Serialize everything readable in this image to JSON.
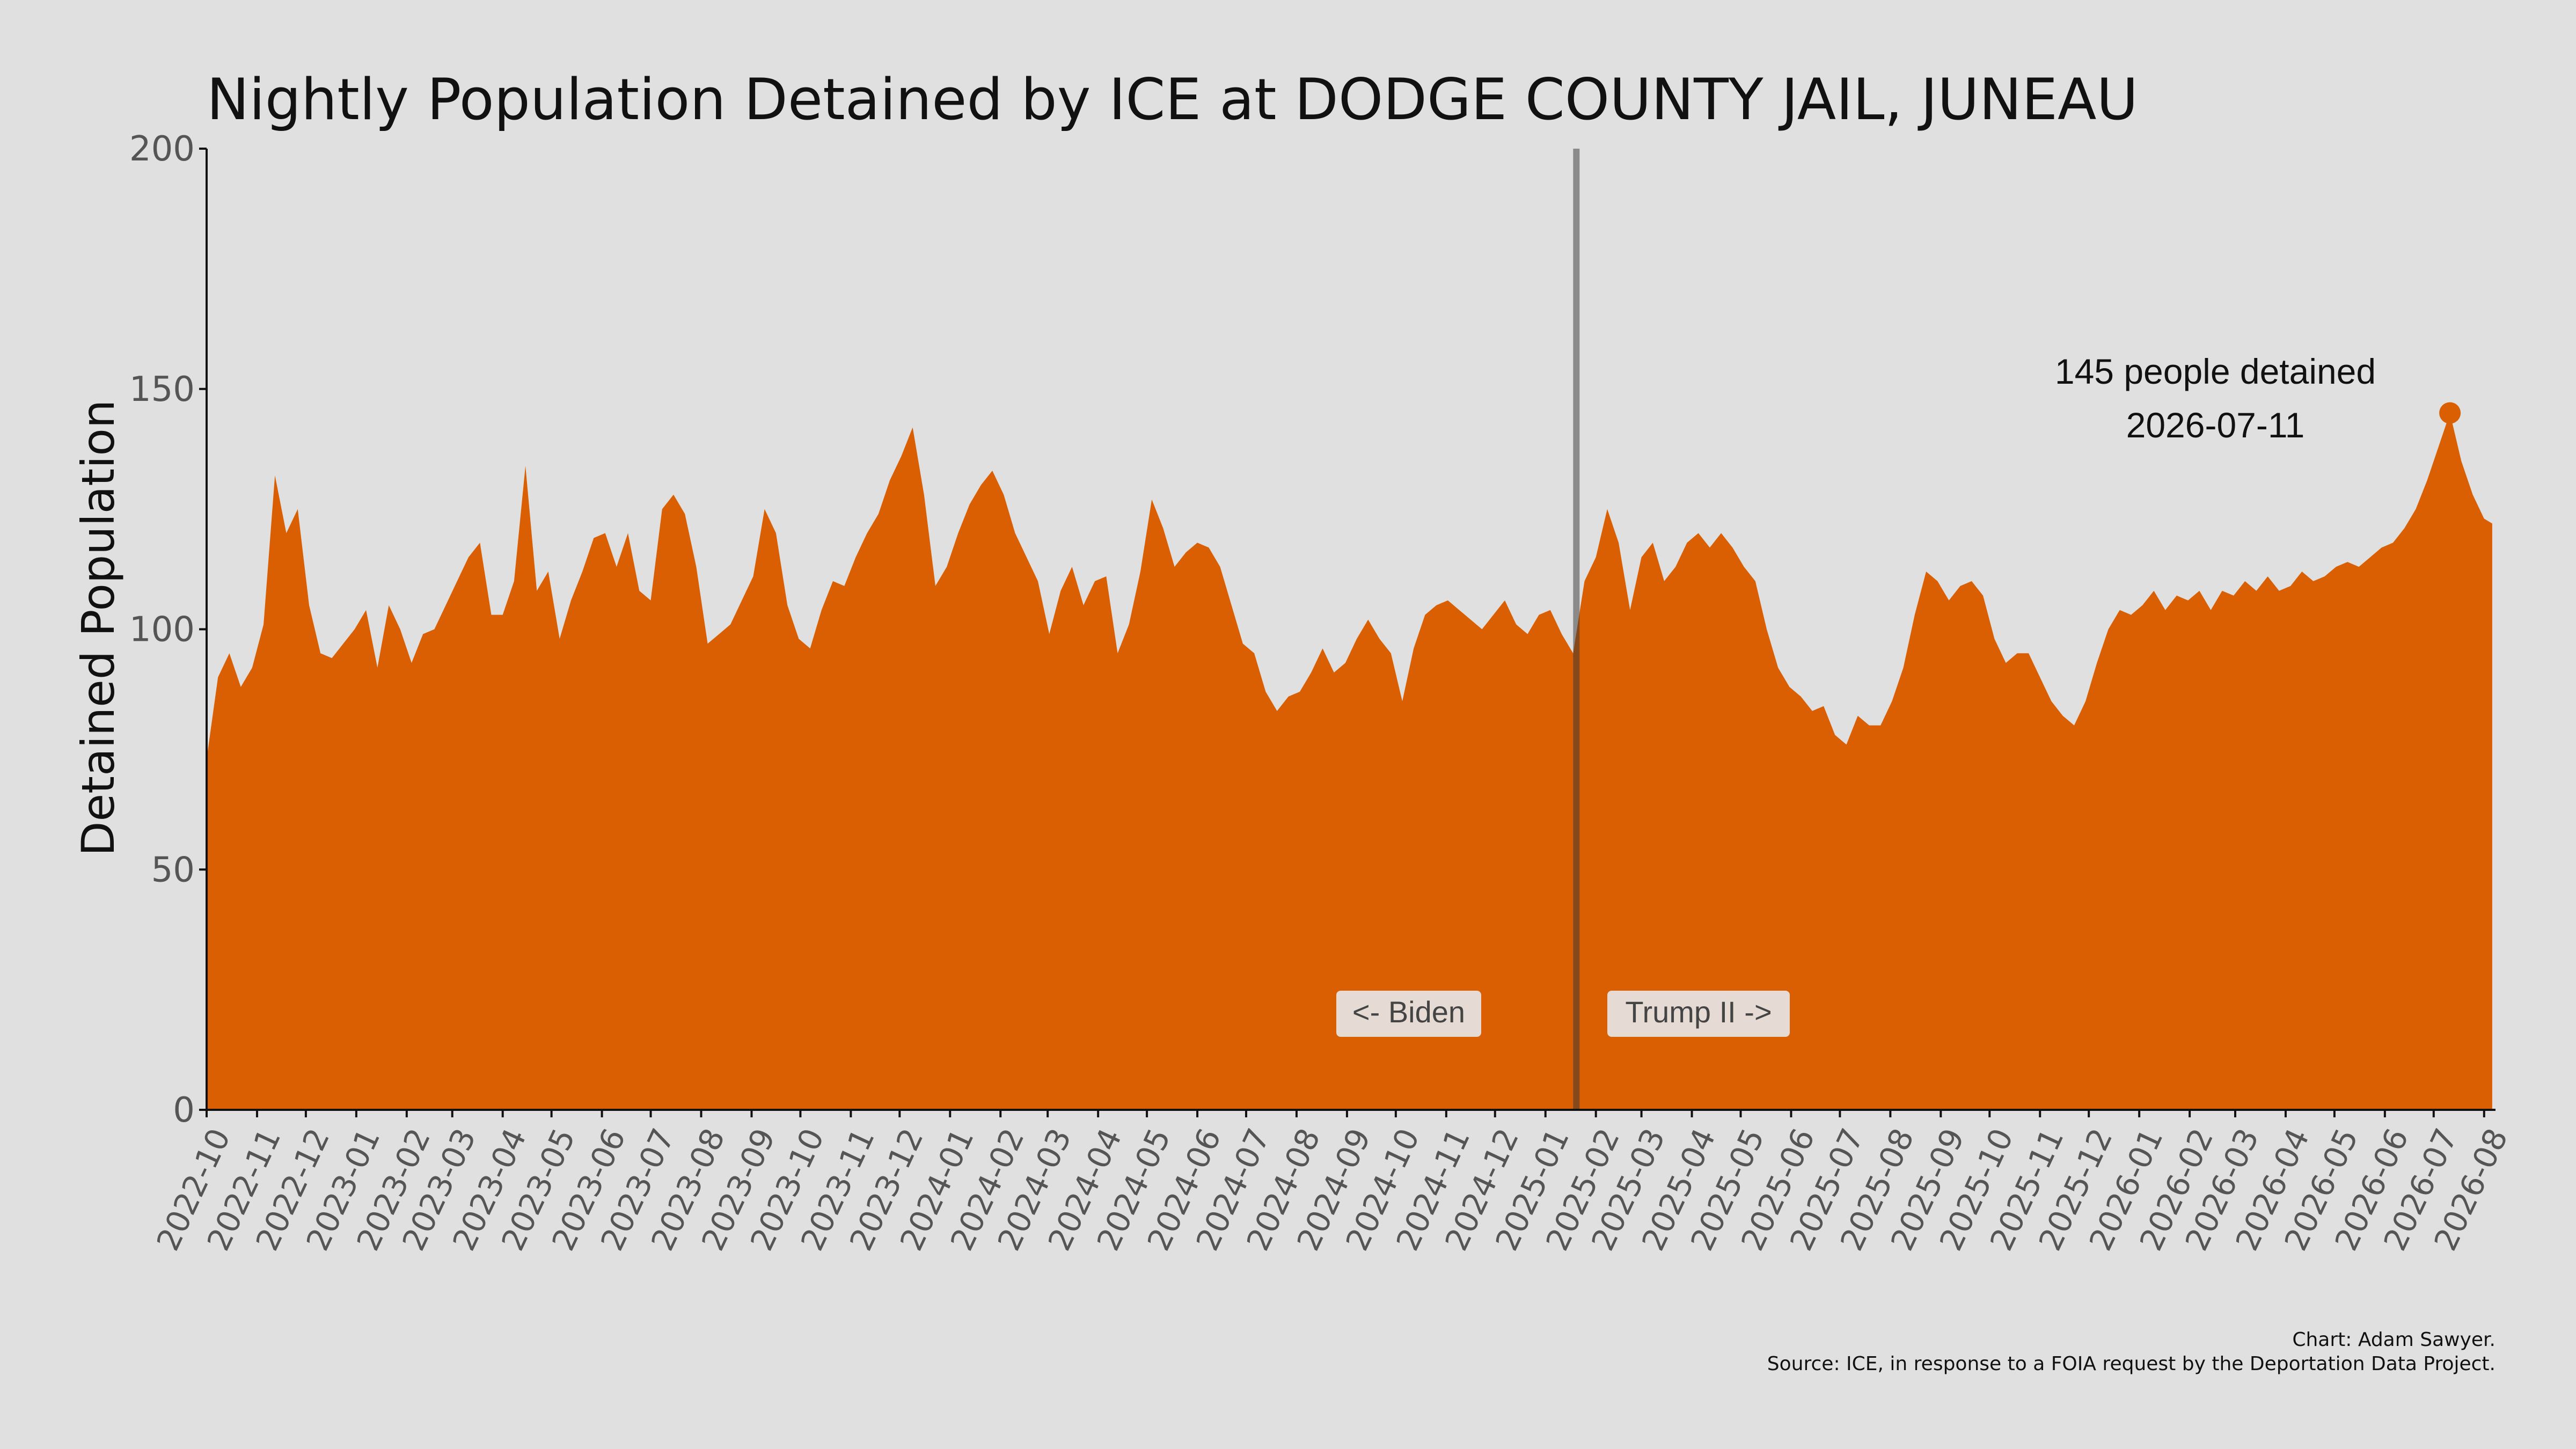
{
  "chart_data": {
    "type": "area",
    "title": "Nightly Population Detained by ICE at DODGE COUNTY JAIL, JUNEAU",
    "xlabel": "",
    "ylabel": "Detained Population",
    "ylim": [
      0,
      200
    ],
    "yticks": [
      0,
      50,
      100,
      150,
      200
    ],
    "xlim": [
      "2022-10-01",
      "2026-08-08"
    ],
    "xticks": [
      "2022-10",
      "2022-11",
      "2022-12",
      "2023-01",
      "2023-02",
      "2023-03",
      "2023-04",
      "2023-05",
      "2023-06",
      "2023-07",
      "2023-08",
      "2023-09",
      "2023-10",
      "2023-11",
      "2023-12",
      "2024-01",
      "2024-02",
      "2024-03",
      "2024-04",
      "2024-05",
      "2024-06",
      "2024-07",
      "2024-08",
      "2024-09",
      "2024-10",
      "2024-11",
      "2024-12",
      "2025-01",
      "2025-02",
      "2025-03",
      "2025-04",
      "2025-05",
      "2025-06",
      "2025-07",
      "2025-08",
      "2025-09",
      "2025-10",
      "2025-11",
      "2025-12",
      "2026-01",
      "2026-02",
      "2026-03",
      "2026-04",
      "2026-05",
      "2026-06",
      "2026-07",
      "2026-08"
    ],
    "grid": false,
    "color": "#d95f02",
    "series": [
      {
        "points": [
          [
            "2022-10-01",
            73
          ],
          [
            "2022-10-08",
            90
          ],
          [
            "2022-10-15",
            95
          ],
          [
            "2022-10-22",
            88
          ],
          [
            "2022-10-29",
            92
          ],
          [
            "2022-11-05",
            101
          ],
          [
            "2022-11-12",
            132
          ],
          [
            "2022-11-19",
            120
          ],
          [
            "2022-11-26",
            125
          ],
          [
            "2022-12-03",
            105
          ],
          [
            "2022-12-10",
            95
          ],
          [
            "2022-12-17",
            94
          ],
          [
            "2022-12-24",
            97
          ],
          [
            "2022-12-31",
            100
          ],
          [
            "2023-01-07",
            104
          ],
          [
            "2023-01-14",
            92
          ],
          [
            "2023-01-21",
            105
          ],
          [
            "2023-01-28",
            100
          ],
          [
            "2023-02-04",
            93
          ],
          [
            "2023-02-11",
            99
          ],
          [
            "2023-02-18",
            100
          ],
          [
            "2023-02-25",
            105
          ],
          [
            "2023-03-04",
            110
          ],
          [
            "2023-03-11",
            115
          ],
          [
            "2023-03-18",
            118
          ],
          [
            "2023-03-25",
            103
          ],
          [
            "2023-04-01",
            103
          ],
          [
            "2023-04-08",
            110
          ],
          [
            "2023-04-15",
            134
          ],
          [
            "2023-04-22",
            108
          ],
          [
            "2023-04-29",
            112
          ],
          [
            "2023-05-06",
            98
          ],
          [
            "2023-05-13",
            106
          ],
          [
            "2023-05-20",
            112
          ],
          [
            "2023-05-27",
            119
          ],
          [
            "2023-06-03",
            120
          ],
          [
            "2023-06-10",
            113
          ],
          [
            "2023-06-17",
            120
          ],
          [
            "2023-06-24",
            108
          ],
          [
            "2023-07-01",
            106
          ],
          [
            "2023-07-08",
            125
          ],
          [
            "2023-07-15",
            128
          ],
          [
            "2023-07-22",
            124
          ],
          [
            "2023-07-29",
            113
          ],
          [
            "2023-08-05",
            97
          ],
          [
            "2023-08-12",
            99
          ],
          [
            "2023-08-19",
            101
          ],
          [
            "2023-08-26",
            106
          ],
          [
            "2023-09-02",
            111
          ],
          [
            "2023-09-09",
            125
          ],
          [
            "2023-09-16",
            120
          ],
          [
            "2023-09-23",
            105
          ],
          [
            "2023-09-30",
            98
          ],
          [
            "2023-10-07",
            96
          ],
          [
            "2023-10-14",
            104
          ],
          [
            "2023-10-21",
            110
          ],
          [
            "2023-10-28",
            109
          ],
          [
            "2023-11-04",
            115
          ],
          [
            "2023-11-11",
            120
          ],
          [
            "2023-11-18",
            124
          ],
          [
            "2023-11-25",
            131
          ],
          [
            "2023-12-02",
            136
          ],
          [
            "2023-12-09",
            142
          ],
          [
            "2023-12-16",
            128
          ],
          [
            "2023-12-23",
            109
          ],
          [
            "2023-12-30",
            113
          ],
          [
            "2024-01-06",
            120
          ],
          [
            "2024-01-13",
            126
          ],
          [
            "2024-01-20",
            130
          ],
          [
            "2024-01-27",
            133
          ],
          [
            "2024-02-03",
            128
          ],
          [
            "2024-02-10",
            120
          ],
          [
            "2024-02-17",
            115
          ],
          [
            "2024-02-24",
            110
          ],
          [
            "2024-03-02",
            99
          ],
          [
            "2024-03-09",
            108
          ],
          [
            "2024-03-16",
            113
          ],
          [
            "2024-03-23",
            105
          ],
          [
            "2024-03-30",
            110
          ],
          [
            "2024-04-06",
            111
          ],
          [
            "2024-04-13",
            95
          ],
          [
            "2024-04-20",
            101
          ],
          [
            "2024-04-27",
            112
          ],
          [
            "2024-05-04",
            127
          ],
          [
            "2024-05-11",
            121
          ],
          [
            "2024-05-18",
            113
          ],
          [
            "2024-05-25",
            116
          ],
          [
            "2024-06-01",
            118
          ],
          [
            "2024-06-08",
            117
          ],
          [
            "2024-06-15",
            113
          ],
          [
            "2024-06-22",
            105
          ],
          [
            "2024-06-29",
            97
          ],
          [
            "2024-07-06",
            95
          ],
          [
            "2024-07-13",
            87
          ],
          [
            "2024-07-20",
            83
          ],
          [
            "2024-07-27",
            86
          ],
          [
            "2024-08-03",
            87
          ],
          [
            "2024-08-10",
            91
          ],
          [
            "2024-08-17",
            96
          ],
          [
            "2024-08-24",
            91
          ],
          [
            "2024-08-31",
            93
          ],
          [
            "2024-09-07",
            98
          ],
          [
            "2024-09-14",
            102
          ],
          [
            "2024-09-21",
            98
          ],
          [
            "2024-09-28",
            95
          ],
          [
            "2024-10-05",
            85
          ],
          [
            "2024-10-12",
            96
          ],
          [
            "2024-10-19",
            103
          ],
          [
            "2024-10-26",
            105
          ],
          [
            "2024-11-02",
            106
          ],
          [
            "2024-11-09",
            104
          ],
          [
            "2024-11-16",
            102
          ],
          [
            "2024-11-23",
            100
          ],
          [
            "2024-11-30",
            103
          ],
          [
            "2024-12-07",
            106
          ],
          [
            "2024-12-14",
            101
          ],
          [
            "2024-12-21",
            99
          ],
          [
            "2024-12-28",
            103
          ],
          [
            "2025-01-04",
            104
          ],
          [
            "2025-01-11",
            99
          ],
          [
            "2025-01-18",
            95
          ],
          [
            "2025-01-25",
            110
          ],
          [
            "2025-02-01",
            115
          ],
          [
            "2025-02-08",
            125
          ],
          [
            "2025-02-15",
            118
          ],
          [
            "2025-02-22",
            104
          ],
          [
            "2025-03-01",
            115
          ],
          [
            "2025-03-08",
            118
          ],
          [
            "2025-03-15",
            110
          ],
          [
            "2025-03-22",
            113
          ],
          [
            "2025-03-29",
            118
          ],
          [
            "2025-04-05",
            120
          ],
          [
            "2025-04-12",
            117
          ],
          [
            "2025-04-19",
            120
          ],
          [
            "2025-04-26",
            117
          ],
          [
            "2025-05-03",
            113
          ],
          [
            "2025-05-10",
            110
          ],
          [
            "2025-05-17",
            100
          ],
          [
            "2025-05-24",
            92
          ],
          [
            "2025-05-31",
            88
          ],
          [
            "2025-06-07",
            86
          ],
          [
            "2025-06-14",
            83
          ],
          [
            "2025-06-21",
            84
          ],
          [
            "2025-06-28",
            78
          ],
          [
            "2025-07-05",
            76
          ],
          [
            "2025-07-12",
            82
          ],
          [
            "2025-07-19",
            80
          ],
          [
            "2025-07-26",
            80
          ],
          [
            "2025-08-02",
            85
          ],
          [
            "2025-08-09",
            92
          ],
          [
            "2025-08-16",
            103
          ],
          [
            "2025-08-23",
            112
          ],
          [
            "2025-08-30",
            110
          ],
          [
            "2025-09-06",
            106
          ],
          [
            "2025-09-13",
            109
          ],
          [
            "2025-09-20",
            110
          ],
          [
            "2025-09-27",
            107
          ],
          [
            "2025-10-04",
            98
          ],
          [
            "2025-10-11",
            93
          ],
          [
            "2025-10-18",
            95
          ],
          [
            "2025-10-25",
            95
          ],
          [
            "2025-11-01",
            90
          ],
          [
            "2025-11-08",
            85
          ],
          [
            "2025-11-15",
            82
          ],
          [
            "2025-11-22",
            80
          ],
          [
            "2025-11-29",
            85
          ],
          [
            "2025-12-06",
            93
          ],
          [
            "2025-12-13",
            100
          ],
          [
            "2025-12-20",
            104
          ],
          [
            "2025-12-27",
            103
          ],
          [
            "2026-01-03",
            105
          ],
          [
            "2026-01-10",
            108
          ],
          [
            "2026-01-17",
            104
          ],
          [
            "2026-01-24",
            107
          ],
          [
            "2026-01-31",
            106
          ],
          [
            "2026-02-07",
            108
          ],
          [
            "2026-02-14",
            104
          ],
          [
            "2026-02-21",
            108
          ],
          [
            "2026-02-28",
            107
          ],
          [
            "2026-03-07",
            110
          ],
          [
            "2026-03-14",
            108
          ],
          [
            "2026-03-21",
            111
          ],
          [
            "2026-03-28",
            108
          ],
          [
            "2026-04-04",
            109
          ],
          [
            "2026-04-11",
            112
          ],
          [
            "2026-04-18",
            110
          ],
          [
            "2026-04-25",
            111
          ],
          [
            "2026-05-02",
            113
          ],
          [
            "2026-05-09",
            114
          ],
          [
            "2026-05-16",
            113
          ],
          [
            "2026-05-23",
            115
          ],
          [
            "2026-05-30",
            117
          ],
          [
            "2026-06-06",
            118
          ],
          [
            "2026-06-13",
            121
          ],
          [
            "2026-06-20",
            125
          ],
          [
            "2026-06-27",
            131
          ],
          [
            "2026-07-04",
            138
          ],
          [
            "2026-07-11",
            145
          ],
          [
            "2026-07-18",
            135
          ],
          [
            "2026-07-25",
            128
          ],
          [
            "2026-08-01",
            123
          ],
          [
            "2026-08-06",
            122
          ]
        ]
      }
    ],
    "divider": {
      "date": "2025-01-20"
    },
    "era_labels": [
      "<- Biden",
      "Trump II ->"
    ],
    "peak": {
      "date": "2026-07-11",
      "value": 145,
      "label_line1": "145 people detained",
      "label_line2": "2026-07-11"
    },
    "credits": [
      "Chart: Adam Sawyer.",
      "Source: ICE, in response to a FOIA request by the Deportation Data Project."
    ]
  }
}
